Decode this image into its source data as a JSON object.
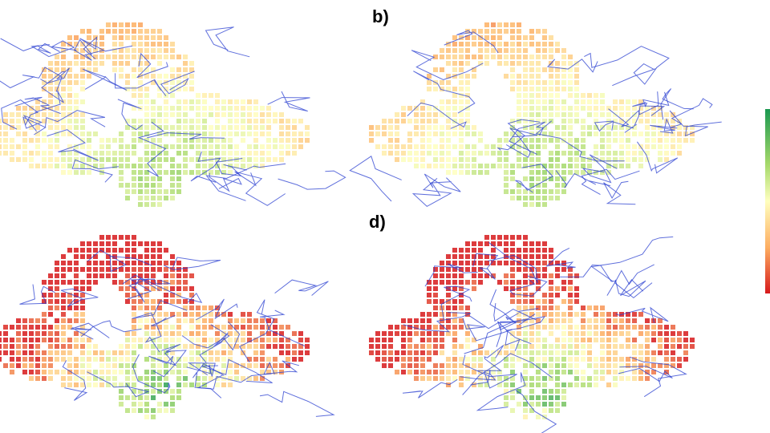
{
  "panels": [
    {
      "label": "b)"
    },
    {
      "label": "d)"
    }
  ]
}
